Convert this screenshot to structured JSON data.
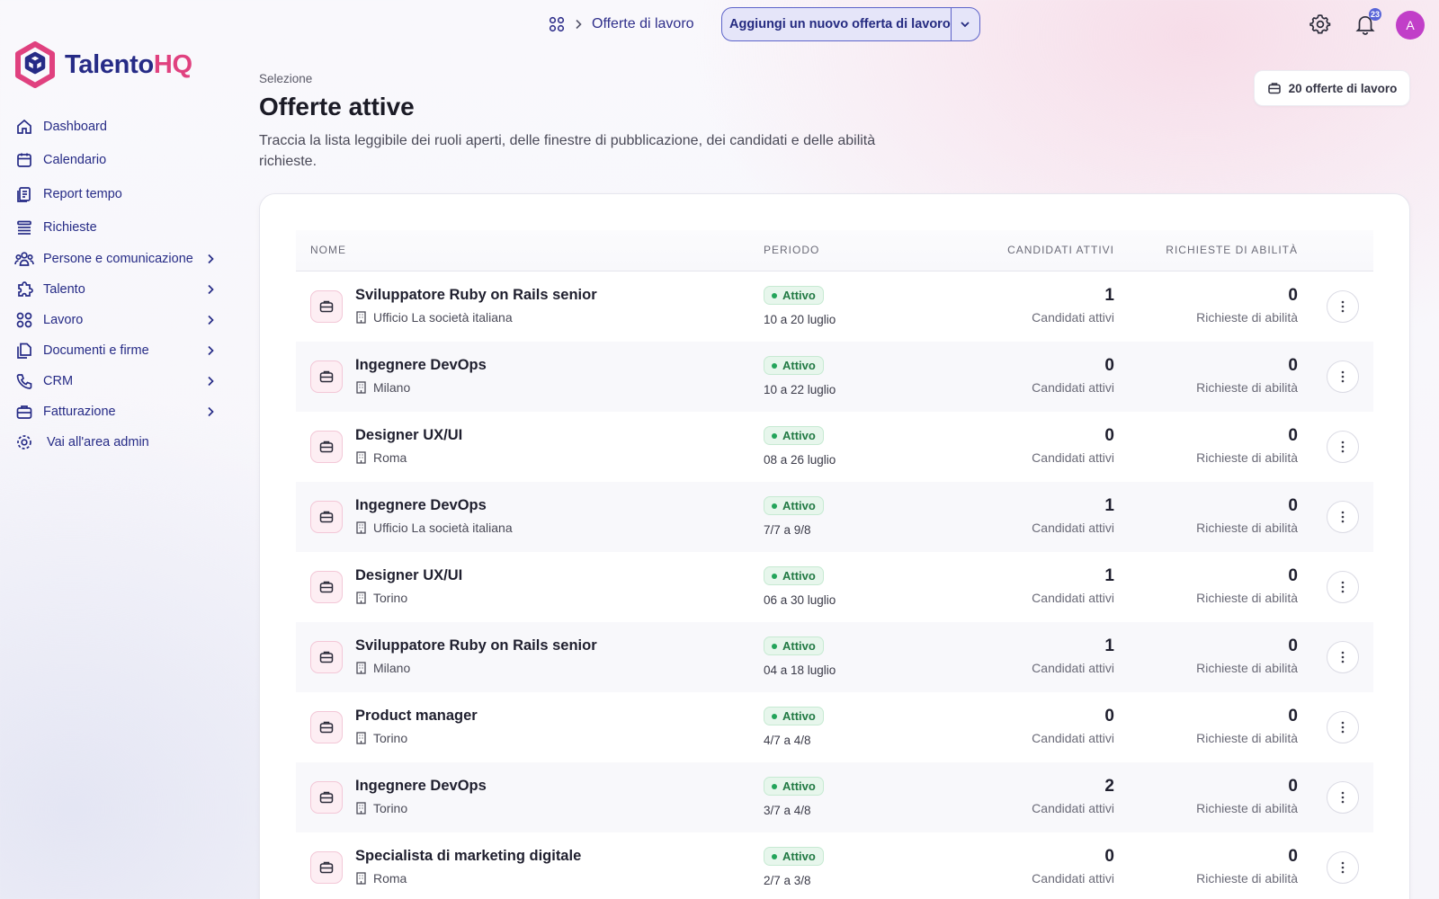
{
  "header": {
    "breadcrumb": "Offerte di lavoro",
    "add_button_label": "Aggiungi un nuovo offerta di lavoro",
    "notifications_count": "23",
    "avatar_initial": "A"
  },
  "brand": {
    "name_part1": "Talento",
    "name_part2": "HQ",
    "colors": {
      "primary": "#262b86",
      "accent": "#e0417f"
    }
  },
  "sidebar": {
    "items": [
      {
        "label": "Dashboard",
        "icon": "home-icon",
        "has_submenu": false
      },
      {
        "label": "Calendario",
        "icon": "calendar-icon",
        "has_submenu": false
      },
      {
        "label": "Report tempo",
        "icon": "report-icon",
        "has_submenu": false
      },
      {
        "label": "Richieste",
        "icon": "list-icon",
        "has_submenu": false
      },
      {
        "label": "Persone e comunicazione",
        "icon": "people-icon",
        "has_submenu": true
      },
      {
        "label": "Talento",
        "icon": "puzzle-icon",
        "has_submenu": true
      },
      {
        "label": "Lavoro",
        "icon": "grid-icon",
        "has_submenu": true
      },
      {
        "label": "Documenti e firme",
        "icon": "documents-icon",
        "has_submenu": true
      },
      {
        "label": "CRM",
        "icon": "phone-icon",
        "has_submenu": true
      },
      {
        "label": "Fatturazione",
        "icon": "briefcase-icon",
        "has_submenu": true
      },
      {
        "label": "Vai all'area admin",
        "icon": "gear-icon",
        "has_submenu": false
      }
    ]
  },
  "page": {
    "eyebrow": "Selezione",
    "title": "Offerte attive",
    "description": "Traccia la lista leggibile dei ruoli aperti, delle finestre di pubblicazione, dei candidati e delle abilità richieste.",
    "count_label": "20 offerte di lavoro"
  },
  "table": {
    "columns": [
      "NOME",
      "PERIODO",
      "CANDIDATI ATTIVI",
      "RICHIESTE DI ABILITÀ"
    ],
    "sub_labels": {
      "candidates": "Candidati attivi",
      "skills": "Richieste di abilità"
    },
    "rows": [
      {
        "title": "Sviluppatore Ruby on Rails senior",
        "location": "Ufficio La società italiana",
        "status": "Attivo",
        "period": "10 a 20 luglio",
        "candidates": "1",
        "skills": "0"
      },
      {
        "title": "Ingegnere DevOps",
        "location": "Milano",
        "status": "Attivo",
        "period": "10 a 22 luglio",
        "candidates": "0",
        "skills": "0"
      },
      {
        "title": "Designer UX/UI",
        "location": "Roma",
        "status": "Attivo",
        "period": "08 a 26 luglio",
        "candidates": "0",
        "skills": "0"
      },
      {
        "title": "Ingegnere DevOps",
        "location": "Ufficio La società italiana",
        "status": "Attivo",
        "period": "7/7 a 9/8",
        "candidates": "1",
        "skills": "0"
      },
      {
        "title": "Designer UX/UI",
        "location": "Torino",
        "status": "Attivo",
        "period": "06 a 30 luglio",
        "candidates": "1",
        "skills": "0"
      },
      {
        "title": "Sviluppatore Ruby on Rails senior",
        "location": "Milano",
        "status": "Attivo",
        "period": "04 a 18 luglio",
        "candidates": "1",
        "skills": "0"
      },
      {
        "title": "Product manager",
        "location": "Torino",
        "status": "Attivo",
        "period": "4/7 a 4/8",
        "candidates": "0",
        "skills": "0"
      },
      {
        "title": "Ingegnere DevOps",
        "location": "Torino",
        "status": "Attivo",
        "period": "3/7 a 4/8",
        "candidates": "2",
        "skills": "0"
      },
      {
        "title": "Specialista di marketing digitale",
        "location": "Roma",
        "status": "Attivo",
        "period": "2/7 a 3/8",
        "candidates": "0",
        "skills": "0"
      }
    ]
  }
}
